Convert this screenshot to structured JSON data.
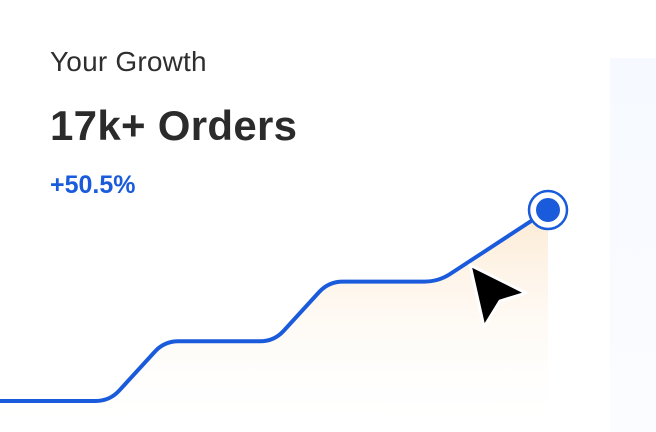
{
  "card": {
    "title": "Your Growth",
    "headline": "17k+ Orders",
    "change": "+50.5%"
  },
  "chart_data": {
    "type": "line",
    "x": [
      0,
      1,
      2,
      3,
      4,
      5,
      6,
      7,
      8,
      9,
      10
    ],
    "values": [
      1,
      1,
      1,
      2,
      2,
      2,
      3,
      3,
      3,
      3.6,
      4.2
    ],
    "series_color": "#1a5bdc",
    "area_fill": "#fdf1e2",
    "grid": false,
    "legend": "none",
    "xlabel": "",
    "ylabel": "",
    "ylim": [
      1,
      4.2
    ]
  },
  "colors": {
    "accent": "#1a5bdc",
    "text": "#2b2b2b"
  },
  "cursor": {
    "icon": "arrow-cursor-icon"
  }
}
